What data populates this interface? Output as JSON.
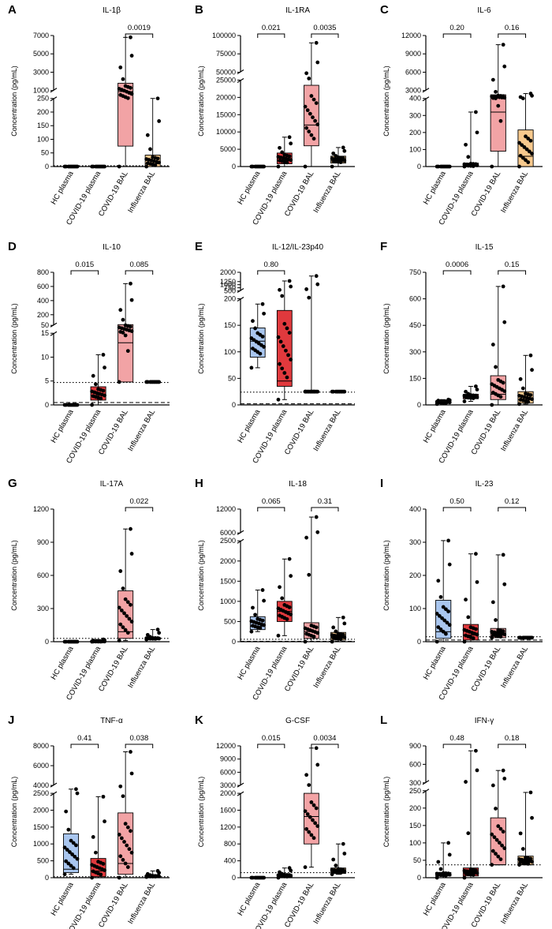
{
  "colors": {
    "hc": "#a9c6ef",
    "covid_plasma": "#e0393d",
    "covid_bal": "#f2a3a5",
    "flu_bal": "#f7c98d"
  },
  "groups": [
    "HC plasma",
    "COVID-19 plasma",
    "COVID-19 BAL",
    "Influenza BAL"
  ],
  "ylabel": "Concentration (pg/mL)",
  "chart_data": [
    {
      "letter": "A",
      "title": "IL-1β",
      "type": "box",
      "yticks_top": [
        "1000",
        "3000",
        "5000",
        "7000"
      ],
      "yticks_bottom": [
        "0",
        "50",
        "100",
        "150",
        "200",
        "250"
      ],
      "pvals": [
        {
          "between": [
            2,
            3
          ],
          "label": "0.0019"
        }
      ],
      "boxes": [
        {
          "q1": 0,
          "med": 0,
          "q3": 0,
          "min": 0,
          "max": 0
        },
        {
          "q1": 0,
          "med": 0,
          "q3": 0,
          "min": 0,
          "max": 0
        },
        {
          "q1": 75,
          "med": 900,
          "q3": 1800,
          "min": 0,
          "max": 6800
        },
        {
          "q1": 0,
          "med": 10,
          "q3": 42,
          "min": 0,
          "max": 250
        }
      ]
    },
    {
      "letter": "B",
      "title": "IL-1RA",
      "type": "box",
      "yticks_top": [
        "50000",
        "75000",
        "100000"
      ],
      "yticks_bottom": [
        "0",
        "5000",
        "10000",
        "15000",
        "20000",
        "25000"
      ],
      "pvals": [
        {
          "between": [
            0,
            1
          ],
          "label": "0.021"
        },
        {
          "between": [
            2,
            3
          ],
          "label": "0.0035"
        }
      ],
      "boxes": [
        {
          "q1": 0,
          "med": 0,
          "q3": 0,
          "min": 0,
          "max": 0
        },
        {
          "q1": 800,
          "med": 1800,
          "q3": 3900,
          "min": 0,
          "max": 8500
        },
        {
          "q1": 6000,
          "med": 12000,
          "q3": 23500,
          "min": 0,
          "max": 90000
        },
        {
          "q1": 1000,
          "med": 2000,
          "q3": 3000,
          "min": 0,
          "max": 5500
        }
      ]
    },
    {
      "letter": "C",
      "title": "IL-6",
      "type": "box",
      "yticks_top": [
        "3000",
        "6000",
        "9000",
        "12000"
      ],
      "yticks_bottom": [
        "0",
        "100",
        "200",
        "300",
        "400"
      ],
      "pvals": [
        {
          "between": [
            0,
            1
          ],
          "label": "0.20"
        },
        {
          "between": [
            2,
            3
          ],
          "label": "0.16"
        }
      ],
      "boxes": [
        {
          "q1": 0,
          "med": 0,
          "q3": 0,
          "min": 0,
          "max": 0
        },
        {
          "q1": 0,
          "med": 5,
          "q3": 20,
          "min": 0,
          "max": 320
        },
        {
          "q1": 90,
          "med": 320,
          "q3": 1600,
          "min": 0,
          "max": 10500
        },
        {
          "q1": 0,
          "med": 60,
          "q3": 215,
          "min": 0,
          "max": 2000
        }
      ]
    },
    {
      "letter": "D",
      "title": "IL-10",
      "type": "box",
      "yticks_top": [
        "50",
        "200",
        "400",
        "600",
        "800"
      ],
      "yticks_bottom": [
        "0",
        "5",
        "10",
        "15"
      ],
      "pvals": [
        {
          "between": [
            0,
            1
          ],
          "label": "0.015"
        },
        {
          "between": [
            2,
            3
          ],
          "label": "0.085"
        }
      ],
      "boxes": [
        {
          "q1": 0,
          "med": 0,
          "q3": 0,
          "min": 0,
          "max": 0
        },
        {
          "q1": 1,
          "med": 2,
          "q3": 3.8,
          "min": 0,
          "max": 10.5
        },
        {
          "q1": 4.8,
          "med": 13,
          "q3": 60,
          "min": 4.8,
          "max": 640
        },
        {
          "q1": 4.8,
          "med": 4.8,
          "q3": 4.8,
          "min": 4.8,
          "max": 4.8
        }
      ]
    },
    {
      "letter": "E",
      "title": "IL-12/IL-23p40",
      "type": "box",
      "yticks_top": [
        "500",
        "750",
        "1000",
        "1250",
        "2000"
      ],
      "yticks_bottom": [
        "0",
        "50",
        "100",
        "150",
        "200"
      ],
      "pvals": [
        {
          "between": [
            0,
            1
          ],
          "label": "0.80"
        }
      ],
      "boxes": [
        {
          "q1": 90,
          "med": 120,
          "q3": 145,
          "min": 70,
          "max": 190
        },
        {
          "q1": 35,
          "med": 45,
          "q3": 178,
          "min": 10,
          "max": 1300
        },
        {
          "q1": 25,
          "med": 25,
          "q3": 25,
          "min": 25,
          "max": 1700
        },
        {
          "q1": 25,
          "med": 25,
          "q3": 25,
          "min": 25,
          "max": 25
        }
      ]
    },
    {
      "letter": "F",
      "title": "IL-15",
      "type": "box",
      "yticks_bottom": [
        "0",
        "150",
        "300",
        "450",
        "600",
        "750"
      ],
      "pvals": [
        {
          "between": [
            0,
            1
          ],
          "label": "0.0006"
        },
        {
          "between": [
            2,
            3
          ],
          "label": "0.15"
        }
      ],
      "boxes": [
        {
          "q1": 10,
          "med": 15,
          "q3": 22,
          "min": 5,
          "max": 30
        },
        {
          "q1": 35,
          "med": 45,
          "q3": 60,
          "min": 20,
          "max": 105
        },
        {
          "q1": 30,
          "med": 60,
          "q3": 165,
          "min": 0,
          "max": 670
        },
        {
          "q1": 10,
          "med": 30,
          "q3": 75,
          "min": 5,
          "max": 280
        }
      ]
    },
    {
      "letter": "G",
      "title": "IL-17A",
      "type": "box",
      "yticks_bottom": [
        "0",
        "300",
        "600",
        "900",
        "1200"
      ],
      "pvals": [
        {
          "between": [
            2,
            3
          ],
          "label": "0.022"
        }
      ],
      "boxes": [
        {
          "q1": 0,
          "med": 0,
          "q3": 0,
          "min": 0,
          "max": 0
        },
        {
          "q1": 0,
          "med": 0,
          "q3": 5,
          "min": 0,
          "max": 20
        },
        {
          "q1": 30,
          "med": 90,
          "q3": 460,
          "min": 10,
          "max": 1020
        },
        {
          "q1": 25,
          "med": 30,
          "q3": 35,
          "min": 20,
          "max": 110
        }
      ]
    },
    {
      "letter": "H",
      "title": "IL-18",
      "type": "box",
      "yticks_top": [
        "6000",
        "12000"
      ],
      "yticks_bottom": [
        "0",
        "500",
        "1000",
        "1500",
        "2000",
        "2500"
      ],
      "pvals": [
        {
          "between": [
            0,
            1
          ],
          "label": "0.065"
        },
        {
          "between": [
            2,
            3
          ],
          "label": "0.31"
        }
      ],
      "boxes": [
        {
          "q1": 300,
          "med": 380,
          "q3": 620,
          "min": 250,
          "max": 1280
        },
        {
          "q1": 500,
          "med": 750,
          "q3": 1000,
          "min": 150,
          "max": 2050
        },
        {
          "q1": 80,
          "med": 250,
          "q3": 470,
          "min": 0,
          "max": 10000
        },
        {
          "q1": 40,
          "med": 100,
          "q3": 230,
          "min": 0,
          "max": 600
        }
      ]
    },
    {
      "letter": "I",
      "title": "IL-23",
      "type": "box",
      "yticks_bottom": [
        "0",
        "100",
        "200",
        "300",
        "400"
      ],
      "pvals": [
        {
          "between": [
            0,
            1
          ],
          "label": "0.50"
        },
        {
          "between": [
            2,
            3
          ],
          "label": "0.12"
        }
      ],
      "boxes": [
        {
          "q1": 10,
          "med": 30,
          "q3": 125,
          "min": 0,
          "max": 305
        },
        {
          "q1": 5,
          "med": 20,
          "q3": 52,
          "min": 0,
          "max": 265
        },
        {
          "q1": 12,
          "med": 25,
          "q3": 40,
          "min": 12,
          "max": 262
        },
        {
          "q1": 12,
          "med": 12,
          "q3": 12,
          "min": 12,
          "max": 12
        }
      ]
    },
    {
      "letter": "J",
      "title": "TNF-α",
      "type": "box",
      "yticks_top": [
        "4000",
        "6000",
        "8000"
      ],
      "yticks_bottom": [
        "0",
        "500",
        "1000",
        "1500",
        "2000",
        "2500"
      ],
      "pvals": [
        {
          "between": [
            0,
            1
          ],
          "label": "0.41"
        },
        {
          "between": [
            2,
            3
          ],
          "label": "0.038"
        }
      ],
      "boxes": [
        {
          "q1": 150,
          "med": 250,
          "q3": 1300,
          "min": 100,
          "max": 3300
        },
        {
          "q1": 30,
          "med": 200,
          "q3": 570,
          "min": 0,
          "max": 2400
        },
        {
          "q1": 100,
          "med": 420,
          "q3": 1920,
          "min": 0,
          "max": 7400
        },
        {
          "q1": 30,
          "med": 30,
          "q3": 60,
          "min": 20,
          "max": 200
        }
      ]
    },
    {
      "letter": "K",
      "title": "G-CSF",
      "type": "box",
      "yticks_top": [
        "3000",
        "6000",
        "9000",
        "12000"
      ],
      "yticks_bottom": [
        "0",
        "400",
        "800",
        "1200",
        "1600",
        "2000"
      ],
      "pvals": [
        {
          "between": [
            0,
            1
          ],
          "label": "0.015"
        },
        {
          "between": [
            2,
            3
          ],
          "label": "0.0034"
        }
      ],
      "boxes": [
        {
          "q1": 0,
          "med": 0,
          "q3": 0,
          "min": 0,
          "max": 0
        },
        {
          "q1": 20,
          "med": 40,
          "q3": 80,
          "min": 0,
          "max": 230
        },
        {
          "q1": 800,
          "med": 1450,
          "q3": 2000,
          "min": 250,
          "max": 11500
        },
        {
          "q1": 100,
          "med": 120,
          "q3": 230,
          "min": 80,
          "max": 800
        }
      ]
    },
    {
      "letter": "L",
      "title": "IFN-γ",
      "type": "box",
      "yticks_top": [
        "300",
        "600",
        "900"
      ],
      "yticks_bottom": [
        "0",
        "50",
        "100",
        "150",
        "200",
        "250"
      ],
      "pvals": [
        {
          "between": [
            0,
            1
          ],
          "label": "0.48"
        },
        {
          "between": [
            2,
            3
          ],
          "label": "0.18"
        }
      ],
      "boxes": [
        {
          "q1": 5,
          "med": 8,
          "q3": 15,
          "min": 0,
          "max": 100
        },
        {
          "q1": 5,
          "med": 15,
          "q3": 28,
          "min": 0,
          "max": 820
        },
        {
          "q1": 37,
          "med": 37,
          "q3": 172,
          "min": 37,
          "max": 500
        },
        {
          "q1": 37,
          "med": 37,
          "q3": 62,
          "min": 37,
          "max": 245
        }
      ]
    }
  ]
}
